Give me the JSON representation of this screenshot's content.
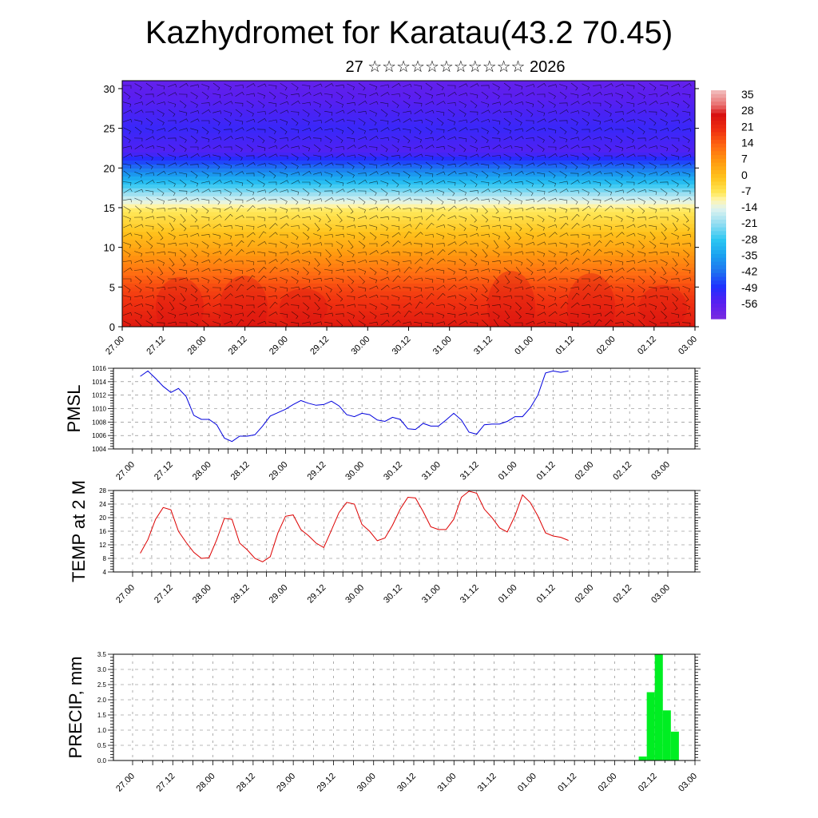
{
  "title": "Kazhydromet for Karatau(43.2 70.45)",
  "subtitle": "27 ☆☆☆☆☆☆☆☆☆☆☆ 2026",
  "time_labels": [
    "27.00",
    "27.12",
    "28.00",
    "28.12",
    "29.00",
    "29.12",
    "30.00",
    "30.12",
    "31.00",
    "31.12",
    "01.00",
    "01.12",
    "02.00",
    "02.12",
    "03.00"
  ],
  "chart_data": [
    {
      "type": "heatmap",
      "name": "cross-section",
      "title": "",
      "xlabel": "",
      "ylabel": "",
      "ylim": [
        0,
        31
      ],
      "yticks": [
        "0",
        "5",
        "10",
        "15",
        "20",
        "25",
        "30"
      ],
      "colorbar": {
        "labels": [
          "35",
          "28",
          "21",
          "14",
          "7",
          "0",
          "-7",
          "-14",
          "-21",
          "-28",
          "-35",
          "-42",
          "-49",
          "-56"
        ],
        "range": [
          -63,
          39
        ],
        "stops": [
          {
            "v": -63,
            "color": "#7a2be0"
          },
          {
            "v": -56,
            "color": "#5a1ef0"
          },
          {
            "v": -49,
            "color": "#1f2fff"
          },
          {
            "v": -42,
            "color": "#1f73f0"
          },
          {
            "v": -35,
            "color": "#1aa0f0"
          },
          {
            "v": -28,
            "color": "#2ac6f2"
          },
          {
            "v": -21,
            "color": "#8fdcf2"
          },
          {
            "v": -14,
            "color": "#dff3ef"
          },
          {
            "v": -10,
            "color": "#fff5b0"
          },
          {
            "v": -7,
            "color": "#ffe95a"
          },
          {
            "v": 0,
            "color": "#ffc31c"
          },
          {
            "v": 7,
            "color": "#ff9a10"
          },
          {
            "v": 14,
            "color": "#ff6a12"
          },
          {
            "v": 21,
            "color": "#f03010"
          },
          {
            "v": 28,
            "color": "#d81010"
          },
          {
            "v": 32,
            "color": "#e86a6a"
          },
          {
            "v": 39,
            "color": "#f2c0c0"
          }
        ]
      },
      "temperature_by_height": [
        {
          "h": 0,
          "t": 26
        },
        {
          "h": 5,
          "t": 18
        },
        {
          "h": 10,
          "t": 5
        },
        {
          "h": 15,
          "t": -8
        },
        {
          "h": 18,
          "t": -28
        },
        {
          "h": 22,
          "t": -55
        },
        {
          "h": 25,
          "t": -52
        },
        {
          "h": 31,
          "t": -58
        }
      ]
    },
    {
      "type": "line",
      "name": "pmsl",
      "ylabel": "PMSL",
      "ylim": [
        1004,
        1016
      ],
      "yticks": [
        "1004",
        "1006",
        "1008",
        "1010",
        "1012",
        "1014",
        "1016"
      ],
      "color": "#0000dd",
      "x_start": 0.2,
      "x_step": 0.2,
      "values": [
        1014.8,
        1015.6,
        1014.5,
        1013.3,
        1012.4,
        1013.0,
        1011.8,
        1009.0,
        1008.4,
        1008.4,
        1007.6,
        1005.6,
        1005.1,
        1005.9,
        1005.9,
        1006.1,
        1007.4,
        1008.9,
        1009.4,
        1009.9,
        1010.6,
        1011.2,
        1010.8,
        1010.5,
        1010.6,
        1011.1,
        1010.4,
        1009.1,
        1008.8,
        1009.3,
        1009.1,
        1008.3,
        1008.1,
        1008.7,
        1008.4,
        1007.0,
        1006.9,
        1007.8,
        1007.4,
        1007.4,
        1008.3,
        1009.3,
        1008.3,
        1006.5,
        1006.2,
        1007.6,
        1007.7,
        1007.7,
        1008.1,
        1008.8,
        1008.8,
        1010.1,
        1012.0,
        1015.3,
        1015.6,
        1015.4,
        1015.6
      ]
    },
    {
      "type": "line",
      "name": "temp2m",
      "ylabel": "TEMP at 2 M",
      "ylim": [
        4,
        28
      ],
      "yticks": [
        "4",
        "8",
        "12",
        "16",
        "20",
        "24",
        "28"
      ],
      "color": "#dd0000",
      "x_start": 0.2,
      "x_step": 0.2,
      "values": [
        9.5,
        13.5,
        19.5,
        23.0,
        22.3,
        16.0,
        12.7,
        9.8,
        8.0,
        8.2,
        13.5,
        19.8,
        19.5,
        12.5,
        10.5,
        8.0,
        7.0,
        8.5,
        15.5,
        20.4,
        20.8,
        16.5,
        14.7,
        12.5,
        11.2,
        16.3,
        21.5,
        24.5,
        24.0,
        18.0,
        16.0,
        13.2,
        14.0,
        17.8,
        22.5,
        26.0,
        25.8,
        21.8,
        17.3,
        16.5,
        16.5,
        19.5,
        26.0,
        27.8,
        27.2,
        22.5,
        20.0,
        17.0,
        15.8,
        20.5,
        26.7,
        24.5,
        20.5,
        15.5,
        14.6,
        14.2,
        13.3
      ]
    },
    {
      "type": "bar",
      "name": "precip",
      "ylabel": "PRECIP, mm",
      "ylim": [
        0,
        3.5
      ],
      "yticks": [
        "0.0",
        "0.5",
        "1.0",
        "1.5",
        "2.0",
        "2.5",
        "3.0",
        "3.5"
      ],
      "color": "#00ee22",
      "bars": [
        {
          "x": 12.6,
          "value": 0.13
        },
        {
          "x": 12.8,
          "value": 2.25
        },
        {
          "x": 13.0,
          "value": 3.5
        },
        {
          "x": 13.2,
          "value": 1.65
        },
        {
          "x": 13.4,
          "value": 0.95
        }
      ]
    }
  ]
}
